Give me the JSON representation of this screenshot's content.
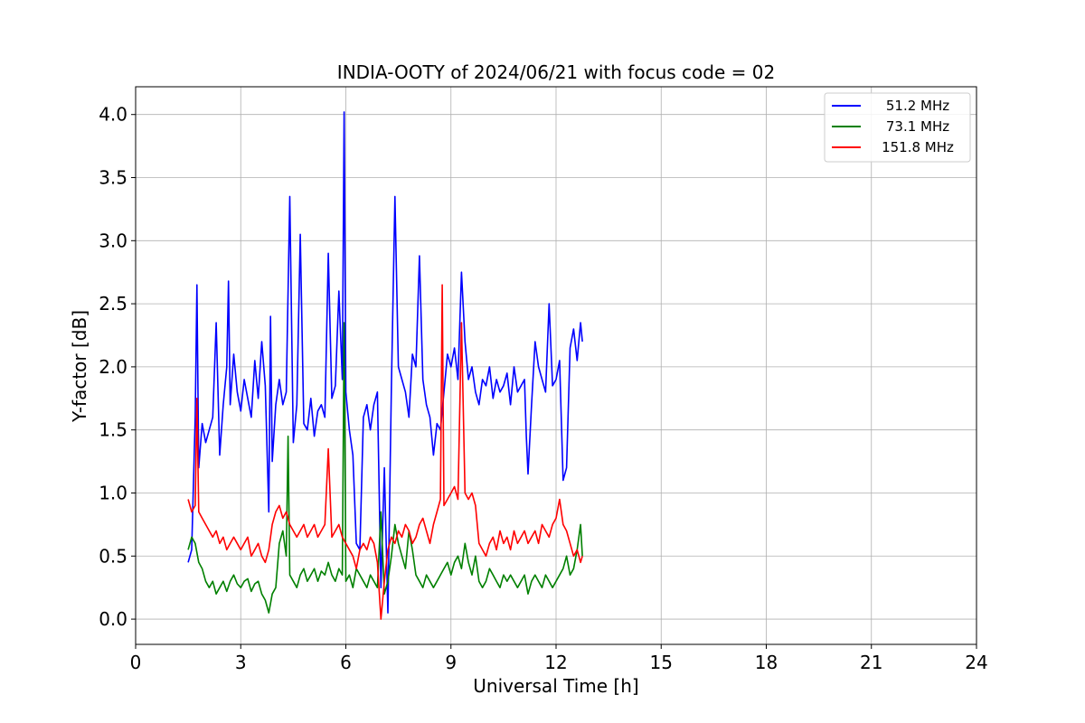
{
  "chart_data": {
    "type": "line",
    "title": "INDIA-OOTY of 2024/06/21 with focus code = 02",
    "xlabel": "Universal Time [h]",
    "ylabel": "Y-factor [dB]",
    "xlim": [
      0,
      24
    ],
    "ylim": [
      -0.2,
      4.22
    ],
    "xticks": [
      0,
      3,
      6,
      9,
      12,
      15,
      18,
      21,
      24
    ],
    "xtick_labels": [
      "0",
      "3",
      "6",
      "9",
      "12",
      "15",
      "18",
      "21",
      "24"
    ],
    "yticks": [
      0.0,
      0.5,
      1.0,
      1.5,
      2.0,
      2.5,
      3.0,
      3.5,
      4.0
    ],
    "ytick_labels": [
      "0.0",
      "0.5",
      "1.0",
      "1.5",
      "2.0",
      "2.5",
      "3.0",
      "3.5",
      "4.0"
    ],
    "grid": true,
    "legend_position": "top-right",
    "series": [
      {
        "name": "51.2 MHz",
        "color": "#0000ff",
        "x": [
          1.5,
          1.6,
          1.7,
          1.75,
          1.8,
          1.9,
          2.0,
          2.1,
          2.2,
          2.3,
          2.4,
          2.5,
          2.6,
          2.65,
          2.7,
          2.8,
          2.9,
          3.0,
          3.1,
          3.2,
          3.3,
          3.4,
          3.5,
          3.6,
          3.7,
          3.8,
          3.85,
          3.9,
          4.0,
          4.1,
          4.2,
          4.3,
          4.4,
          4.5,
          4.6,
          4.7,
          4.8,
          4.9,
          5.0,
          5.1,
          5.2,
          5.3,
          5.4,
          5.5,
          5.6,
          5.7,
          5.8,
          5.9,
          5.95,
          6.0,
          6.1,
          6.2,
          6.3,
          6.4,
          6.5,
          6.6,
          6.7,
          6.8,
          6.9,
          7.0,
          7.1,
          7.2,
          7.3,
          7.4,
          7.5,
          7.6,
          7.7,
          7.8,
          7.9,
          8.0,
          8.1,
          8.2,
          8.3,
          8.4,
          8.5,
          8.6,
          8.7,
          8.8,
          8.9,
          9.0,
          9.1,
          9.2,
          9.3,
          9.4,
          9.5,
          9.6,
          9.7,
          9.8,
          9.9,
          10.0,
          10.1,
          10.2,
          10.3,
          10.4,
          10.5,
          10.6,
          10.7,
          10.8,
          10.9,
          11.0,
          11.1,
          11.15,
          11.2,
          11.3,
          11.4,
          11.5,
          11.6,
          11.7,
          11.8,
          11.9,
          12.0,
          12.1,
          12.2,
          12.3,
          12.4,
          12.5,
          12.6,
          12.7,
          12.75
        ],
        "y": [
          0.45,
          0.55,
          1.6,
          2.65,
          1.2,
          1.55,
          1.4,
          1.5,
          1.6,
          2.35,
          1.3,
          1.7,
          2.0,
          2.68,
          1.7,
          2.1,
          1.8,
          1.65,
          1.9,
          1.75,
          1.6,
          2.05,
          1.75,
          2.2,
          1.85,
          0.85,
          2.4,
          1.25,
          1.7,
          1.9,
          1.7,
          1.8,
          3.35,
          1.4,
          1.7,
          3.05,
          1.55,
          1.5,
          1.75,
          1.45,
          1.65,
          1.7,
          1.6,
          2.9,
          1.75,
          1.85,
          2.6,
          1.9,
          4.02,
          1.8,
          1.5,
          1.3,
          0.6,
          0.55,
          1.6,
          1.7,
          1.5,
          1.7,
          1.8,
          0.25,
          1.2,
          0.05,
          1.85,
          3.35,
          2.0,
          1.9,
          1.8,
          1.6,
          2.1,
          2.0,
          2.88,
          1.9,
          1.7,
          1.6,
          1.3,
          1.55,
          1.5,
          1.8,
          2.1,
          2.0,
          2.15,
          1.9,
          2.75,
          2.2,
          1.9,
          2.0,
          1.8,
          1.7,
          1.9,
          1.85,
          2.0,
          1.75,
          1.9,
          1.8,
          1.85,
          1.95,
          1.7,
          2.0,
          1.8,
          1.85,
          1.9,
          1.45,
          1.15,
          1.7,
          2.2,
          2.0,
          1.9,
          1.8,
          2.5,
          1.85,
          1.9,
          2.05,
          1.1,
          1.2,
          2.15,
          2.3,
          2.05,
          2.35,
          2.2
        ]
      },
      {
        "name": "73.1 MHz",
        "color": "#008000",
        "x": [
          1.5,
          1.6,
          1.7,
          1.8,
          1.9,
          2.0,
          2.1,
          2.2,
          2.3,
          2.4,
          2.5,
          2.6,
          2.7,
          2.8,
          2.9,
          3.0,
          3.1,
          3.2,
          3.3,
          3.4,
          3.5,
          3.6,
          3.7,
          3.8,
          3.9,
          4.0,
          4.1,
          4.2,
          4.3,
          4.35,
          4.4,
          4.5,
          4.6,
          4.7,
          4.8,
          4.9,
          5.0,
          5.1,
          5.2,
          5.3,
          5.4,
          5.5,
          5.6,
          5.7,
          5.8,
          5.9,
          5.95,
          6.0,
          6.1,
          6.2,
          6.3,
          6.4,
          6.5,
          6.6,
          6.7,
          6.8,
          6.9,
          7.0,
          7.1,
          7.2,
          7.3,
          7.4,
          7.5,
          7.6,
          7.7,
          7.8,
          7.9,
          8.0,
          8.1,
          8.2,
          8.3,
          8.4,
          8.5,
          8.6,
          8.7,
          8.8,
          8.9,
          9.0,
          9.1,
          9.2,
          9.3,
          9.4,
          9.5,
          9.6,
          9.7,
          9.8,
          9.9,
          10.0,
          10.1,
          10.2,
          10.3,
          10.4,
          10.5,
          10.6,
          10.7,
          10.8,
          10.9,
          11.0,
          11.1,
          11.2,
          11.3,
          11.4,
          11.5,
          11.6,
          11.7,
          11.8,
          11.9,
          12.0,
          12.1,
          12.2,
          12.3,
          12.4,
          12.5,
          12.6,
          12.7,
          12.75
        ],
        "y": [
          0.55,
          0.65,
          0.6,
          0.45,
          0.4,
          0.3,
          0.25,
          0.3,
          0.2,
          0.25,
          0.3,
          0.22,
          0.3,
          0.35,
          0.28,
          0.25,
          0.3,
          0.32,
          0.22,
          0.28,
          0.3,
          0.2,
          0.15,
          0.05,
          0.2,
          0.25,
          0.6,
          0.7,
          0.5,
          1.45,
          0.35,
          0.3,
          0.25,
          0.35,
          0.4,
          0.3,
          0.35,
          0.4,
          0.3,
          0.38,
          0.35,
          0.45,
          0.35,
          0.3,
          0.4,
          0.35,
          2.35,
          0.3,
          0.35,
          0.25,
          0.4,
          0.35,
          0.3,
          0.25,
          0.35,
          0.3,
          0.25,
          0.85,
          0.2,
          0.3,
          0.5,
          0.75,
          0.6,
          0.5,
          0.4,
          0.7,
          0.55,
          0.35,
          0.3,
          0.25,
          0.35,
          0.3,
          0.25,
          0.3,
          0.35,
          0.4,
          0.45,
          0.35,
          0.45,
          0.5,
          0.4,
          0.6,
          0.45,
          0.35,
          0.5,
          0.3,
          0.25,
          0.3,
          0.4,
          0.35,
          0.3,
          0.25,
          0.35,
          0.3,
          0.35,
          0.3,
          0.25,
          0.3,
          0.35,
          0.2,
          0.3,
          0.35,
          0.3,
          0.25,
          0.35,
          0.3,
          0.25,
          0.3,
          0.35,
          0.4,
          0.5,
          0.35,
          0.4,
          0.55,
          0.75,
          0.5
        ]
      },
      {
        "name": "151.8 MHz",
        "color": "#ff0000",
        "x": [
          1.5,
          1.6,
          1.7,
          1.75,
          1.8,
          1.9,
          2.0,
          2.1,
          2.2,
          2.3,
          2.4,
          2.5,
          2.6,
          2.7,
          2.8,
          2.9,
          3.0,
          3.1,
          3.2,
          3.3,
          3.4,
          3.5,
          3.6,
          3.7,
          3.8,
          3.9,
          4.0,
          4.1,
          4.2,
          4.3,
          4.4,
          4.5,
          4.6,
          4.7,
          4.8,
          4.9,
          5.0,
          5.1,
          5.2,
          5.3,
          5.4,
          5.5,
          5.6,
          5.7,
          5.8,
          5.9,
          6.0,
          6.1,
          6.2,
          6.3,
          6.4,
          6.5,
          6.6,
          6.7,
          6.8,
          6.9,
          7.0,
          7.1,
          7.2,
          7.3,
          7.4,
          7.5,
          7.6,
          7.7,
          7.8,
          7.9,
          8.0,
          8.1,
          8.2,
          8.3,
          8.4,
          8.5,
          8.6,
          8.7,
          8.75,
          8.8,
          8.9,
          9.0,
          9.1,
          9.2,
          9.3,
          9.4,
          9.5,
          9.6,
          9.7,
          9.8,
          9.9,
          10.0,
          10.1,
          10.2,
          10.3,
          10.4,
          10.5,
          10.6,
          10.7,
          10.8,
          10.9,
          11.0,
          11.1,
          11.2,
          11.3,
          11.4,
          11.5,
          11.6,
          11.7,
          11.8,
          11.9,
          12.0,
          12.1,
          12.2,
          12.3,
          12.4,
          12.5,
          12.6,
          12.7,
          12.75
        ],
        "y": [
          0.95,
          0.85,
          0.9,
          1.75,
          0.85,
          0.8,
          0.75,
          0.7,
          0.65,
          0.7,
          0.6,
          0.65,
          0.55,
          0.6,
          0.65,
          0.6,
          0.55,
          0.6,
          0.65,
          0.5,
          0.55,
          0.6,
          0.5,
          0.45,
          0.55,
          0.75,
          0.85,
          0.9,
          0.8,
          0.85,
          0.75,
          0.7,
          0.65,
          0.7,
          0.75,
          0.65,
          0.7,
          0.75,
          0.65,
          0.7,
          0.75,
          1.35,
          0.65,
          0.7,
          0.75,
          0.65,
          0.6,
          0.55,
          0.5,
          0.4,
          0.55,
          0.6,
          0.55,
          0.65,
          0.6,
          0.45,
          0.0,
          0.3,
          0.55,
          0.65,
          0.6,
          0.7,
          0.65,
          0.75,
          0.7,
          0.6,
          0.65,
          0.75,
          0.8,
          0.7,
          0.6,
          0.75,
          0.85,
          0.95,
          2.65,
          0.9,
          0.95,
          1.0,
          1.05,
          0.95,
          2.35,
          1.0,
          0.95,
          1.0,
          0.9,
          0.6,
          0.55,
          0.5,
          0.6,
          0.65,
          0.55,
          0.7,
          0.6,
          0.65,
          0.55,
          0.7,
          0.6,
          0.65,
          0.7,
          0.6,
          0.65,
          0.7,
          0.6,
          0.75,
          0.7,
          0.65,
          0.75,
          0.8,
          0.95,
          0.75,
          0.7,
          0.6,
          0.5,
          0.55,
          0.45,
          0.5
        ]
      }
    ]
  }
}
